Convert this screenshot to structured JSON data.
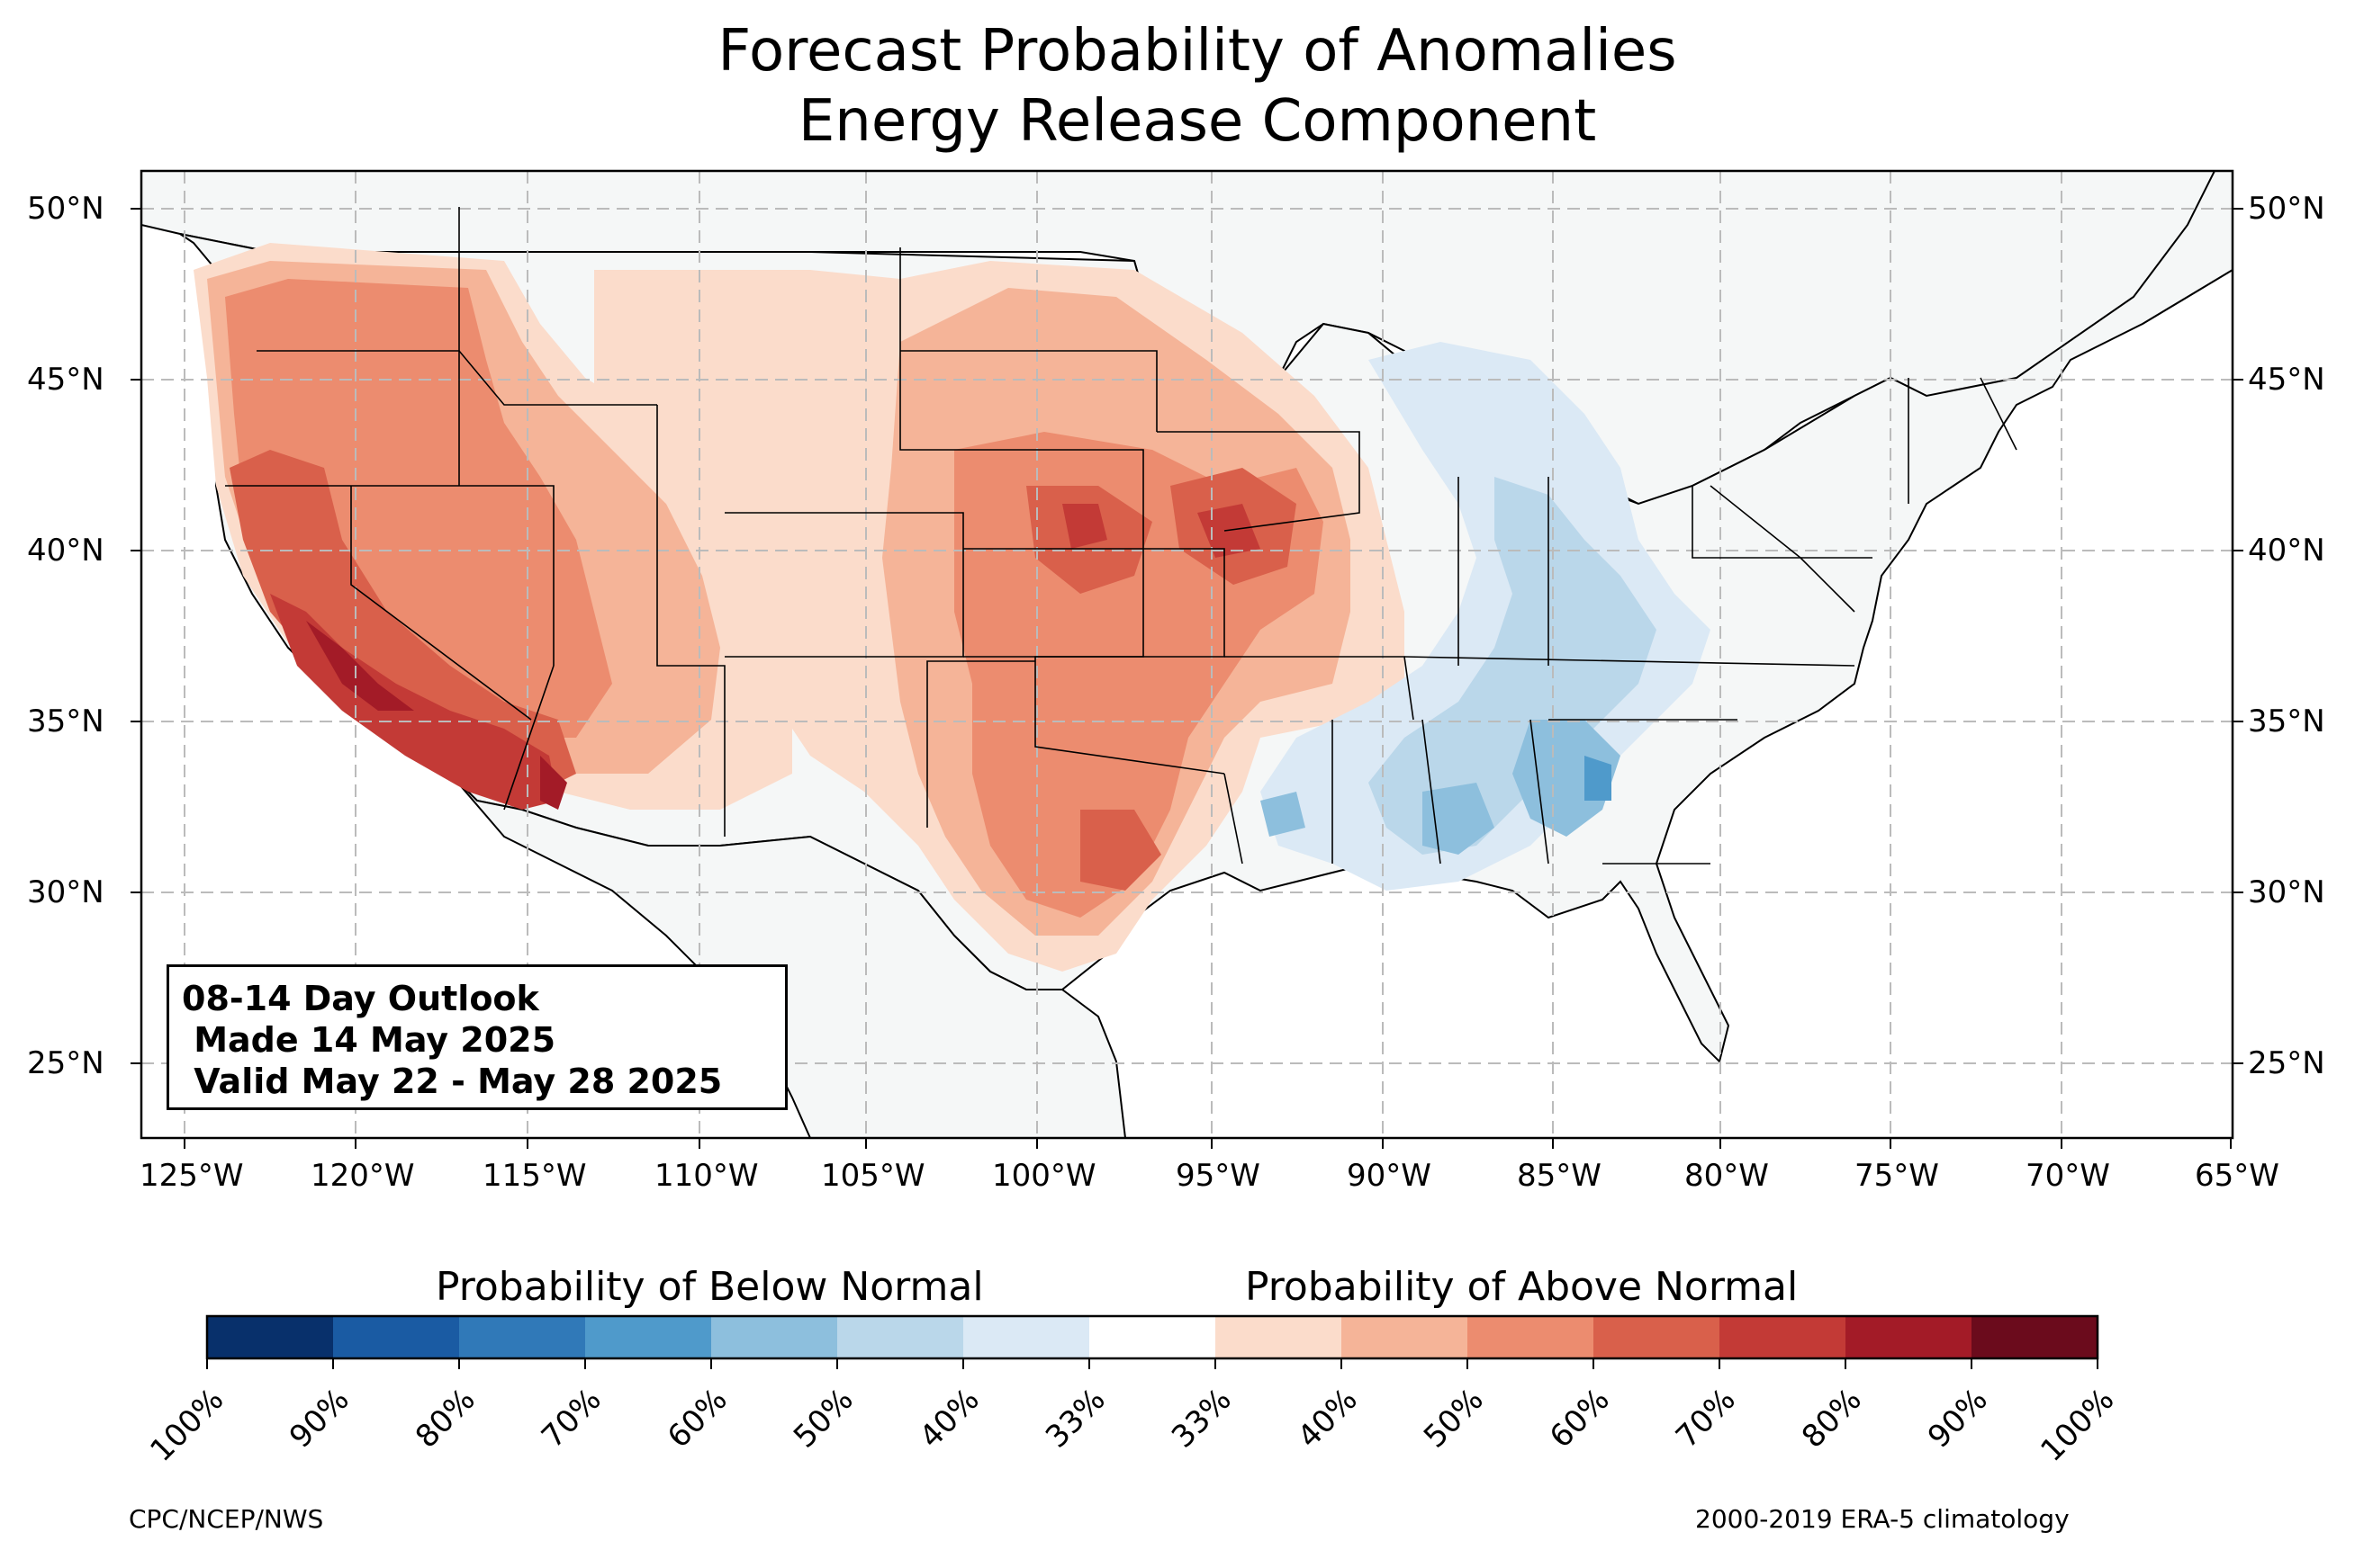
{
  "title_line1": "Forecast Probability of Anomalies",
  "title_line2": "Energy Release Component",
  "outlook": {
    "line1": "08-14 Day Outlook",
    "line2": " Made 14 May 2025",
    "line3": " Valid May 22 - May 28 2025"
  },
  "lat_labels": [
    "50°N",
    "45°N",
    "40°N",
    "35°N",
    "30°N",
    "25°N"
  ],
  "lon_labels": [
    "125°W",
    "120°W",
    "115°W",
    "110°W",
    "105°W",
    "100°W",
    "95°W",
    "90°W",
    "85°W",
    "80°W",
    "75°W",
    "70°W",
    "65°W"
  ],
  "colorbar": {
    "below_label": "Probability of Below Normal",
    "above_label": "Probability of Above Normal",
    "ticks": [
      "100%",
      "90%",
      "80%",
      "70%",
      "60%",
      "50%",
      "40%",
      "33%",
      "33%",
      "40%",
      "50%",
      "60%",
      "70%",
      "80%",
      "90%",
      "100%"
    ],
    "colors": [
      "#08306b",
      "#1a5ba3",
      "#3079b8",
      "#4f9acb",
      "#8dbfdd",
      "#bad7ea",
      "#dbe9f5",
      "#ffffff",
      "#fbdccb",
      "#f5b498",
      "#ec8c6f",
      "#d9604b",
      "#c33a36",
      "#a31b27",
      "#6b0b1c"
    ]
  },
  "credits": {
    "left": "CPC/NCEP/NWS",
    "right": "2000-2019 ERA-5 climatology"
  },
  "map_colors": {
    "land": "#f5f7f7",
    "above_40": "#fbdccb",
    "above_50": "#f5b498",
    "above_60": "#ec8c6f",
    "above_70": "#d9604b",
    "above_80": "#c33a36",
    "above_90": "#a31b27",
    "below_40": "#dbe9f5",
    "below_50": "#bad7ea",
    "below_60": "#8dbfdd",
    "below_70": "#4f9acb"
  }
}
